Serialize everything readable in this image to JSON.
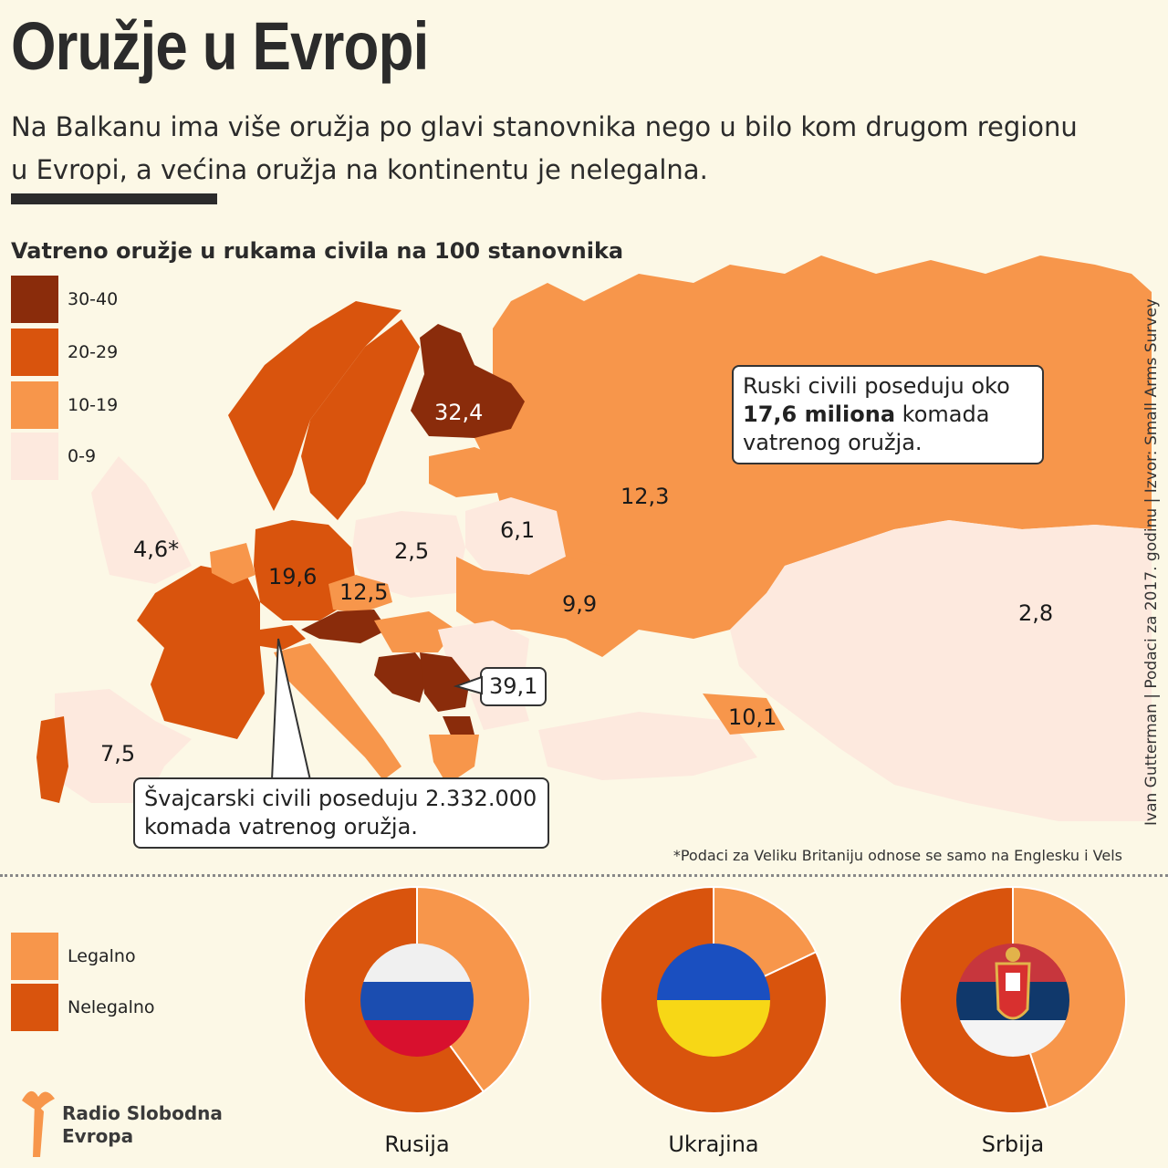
{
  "title": "Oružje u Evropi",
  "subtitle": "Na Balkanu ima više oružja po glavi stanovnika nego u bilo kom drugom regionu u Evropi, a većina oružja na kontinentu je nelegalna.",
  "map": {
    "title": "Vatreno oružje u rukama civila na 100 stanovnika",
    "legend": [
      {
        "label": "30-40",
        "color": "#8a2c0b"
      },
      {
        "label": "20-29",
        "color": "#d9540d"
      },
      {
        "label": "10-19",
        "color": "#f7964b"
      },
      {
        "label": "0-9",
        "color": "#fde9de"
      }
    ],
    "values": {
      "finland": "32,4",
      "russia": "12,3",
      "uk": "4,6*",
      "poland": "2,5",
      "belarus": "6,1",
      "germany": "19,6",
      "czechia": "12,5",
      "ukraine": "9,9",
      "kazakhstan": "2,8",
      "serbia": "39,1",
      "spain": "7,5",
      "georgia": "10,1"
    },
    "callout_russia": {
      "pre": "Ruski civili poseduju oko ",
      "bold": "17,6 miliona",
      "post": " komada vatrenog oružja."
    },
    "callout_switzerland": "Švajcarski civili poseduju 2.332.000 komada vatrenog oružja.",
    "credit": "Ivan Gutterman | Podaci za 2017. godinu | Izvor: Small Arms Survey",
    "footnote": "*Podaci za Veliku Britaniju odnose se samo na Englesku i Vels"
  },
  "donuts": {
    "legend": [
      {
        "label": "Legalno",
        "color": "#f7964b"
      },
      {
        "label": "Nelegalno",
        "color": "#d9540d"
      }
    ],
    "countries": [
      {
        "name": "Rusija",
        "legal_fraction": 0.4
      },
      {
        "name": "Ukrajina",
        "legal_fraction": 0.18
      },
      {
        "name": "Srbija",
        "legal_fraction": 0.45
      }
    ]
  },
  "logo": {
    "line1": "Radio Slobodna",
    "line2": "Evropa"
  }
}
